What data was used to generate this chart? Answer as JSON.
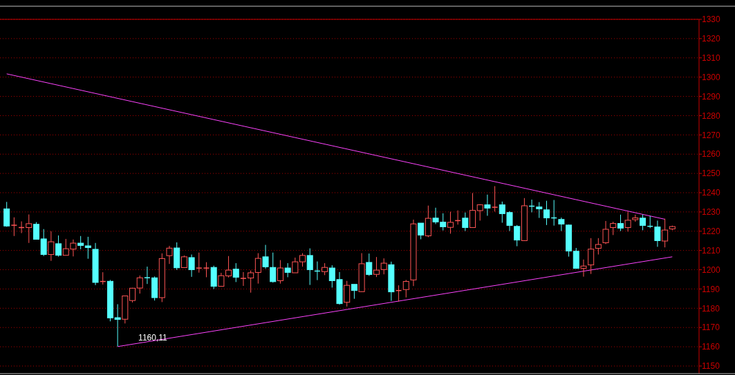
{
  "chart_data": {
    "type": "candlestick",
    "categories": [
      null,
      null,
      null,
      null,
      null,
      null,
      null,
      null,
      null,
      null,
      null,
      null,
      null,
      null,
      null,
      null,
      null,
      null,
      null,
      null,
      null,
      null,
      null,
      null,
      null,
      null,
      null,
      null,
      null,
      null,
      null,
      null,
      null,
      null,
      null,
      null,
      null,
      null,
      null,
      null,
      null,
      null,
      null,
      null,
      null,
      null,
      null,
      null,
      null,
      null,
      null,
      null,
      null,
      null,
      null,
      null,
      null,
      null,
      null,
      null,
      null,
      null,
      null,
      null,
      null,
      null,
      null,
      null,
      null,
      null,
      null,
      null,
      null,
      null,
      null,
      null,
      null,
      null,
      null,
      null,
      null,
      null,
      null,
      null,
      null,
      null,
      null,
      null,
      null,
      null,
      null
    ],
    "ohlc": [
      [
        1231.6,
        1235.2,
        1222.3,
        1222.7
      ],
      [
        1223.1,
        1227.2,
        1217.5,
        1223.1
      ],
      [
        1221.9,
        1225.1,
        1219.0,
        1221.9
      ],
      [
        1221.9,
        1228.7,
        1213.9,
        1223.9
      ],
      [
        1223.6,
        1224.7,
        1215.8,
        1215.8
      ],
      [
        1216.0,
        1221.1,
        1207.1,
        1207.9
      ],
      [
        1207.9,
        1220.0,
        1204.6,
        1214.5
      ],
      [
        1213.5,
        1217.8,
        1206.8,
        1207.5
      ],
      [
        1207.5,
        1216.0,
        1207.5,
        1210.9
      ],
      [
        1210.7,
        1215.7,
        1206.9,
        1213.8
      ],
      [
        1213.8,
        1217.5,
        1210.6,
        1212.6
      ],
      [
        1212.4,
        1217.1,
        1205.7,
        1211.5
      ],
      [
        1210.6,
        1213.9,
        1192.0,
        1193.4
      ],
      [
        1193.9,
        1198.7,
        1192.3,
        1193.9
      ],
      [
        1194.0,
        1194.7,
        1173.2,
        1175.0
      ],
      [
        1175.1,
        1182.1,
        1160.11,
        1174.2
      ],
      [
        1174.3,
        1186.4,
        1172.1,
        1186.4
      ],
      [
        1184.0,
        1190.6,
        1183.0,
        1190.4
      ],
      [
        1190.5,
        1197.0,
        1187.6,
        1195.8
      ],
      [
        1195.9,
        1201.6,
        1192.6,
        1195.8
      ],
      [
        1195.8,
        1196.5,
        1184.0,
        1185.5
      ],
      [
        1185.5,
        1208.5,
        1183.2,
        1205.8
      ],
      [
        1207.3,
        1212.4,
        1203.0,
        1211.2
      ],
      [
        1211.3,
        1214.2,
        1199.9,
        1201.0
      ],
      [
        1201.1,
        1207.4,
        1201.1,
        1206.7
      ],
      [
        1206.3,
        1207.9,
        1196.3,
        1200.0
      ],
      [
        1200.5,
        1208.9,
        1198.5,
        1201.2
      ],
      [
        1200.5,
        1203.9,
        1196.1,
        1201.2
      ],
      [
        1201.2,
        1202.1,
        1190.0,
        1191.4
      ],
      [
        1191.4,
        1198.4,
        1191.4,
        1196.9
      ],
      [
        1196.8,
        1207.1,
        1196.0,
        1199.8
      ],
      [
        1200.3,
        1203.4,
        1193.6,
        1196.1
      ],
      [
        1195.5,
        1198.8,
        1191.6,
        1195.5
      ],
      [
        1195.7,
        1199.6,
        1188.1,
        1198.4
      ],
      [
        1198.6,
        1208.6,
        1192.8,
        1205.9
      ],
      [
        1206.7,
        1212.9,
        1200.5,
        1201.5
      ],
      [
        1201.2,
        1208.9,
        1193.3,
        1193.8
      ],
      [
        1194.3,
        1205.0,
        1192.8,
        1200.9
      ],
      [
        1200.9,
        1203.4,
        1196.1,
        1198.6
      ],
      [
        1198.4,
        1206.3,
        1198.4,
        1204.1
      ],
      [
        1204.1,
        1208.6,
        1201.6,
        1207.4
      ],
      [
        1207.4,
        1211.1,
        1192.1,
        1200.0
      ],
      [
        1199.6,
        1204.3,
        1194.6,
        1199.0
      ],
      [
        1199.0,
        1203.4,
        1197.2,
        1201.2
      ],
      [
        1200.9,
        1202.3,
        1190.7,
        1194.3
      ],
      [
        1194.9,
        1198.8,
        1181.9,
        1182.4
      ],
      [
        1183.1,
        1194.2,
        1180.9,
        1191.9
      ],
      [
        1192.4,
        1192.4,
        1184.9,
        1189.2
      ],
      [
        1188.6,
        1208.6,
        1188.6,
        1203.1
      ],
      [
        1203.8,
        1208.4,
        1196.8,
        1197.5
      ],
      [
        1197.6,
        1206.6,
        1196.2,
        1199.8
      ],
      [
        1200.1,
        1205.9,
        1197.6,
        1203.4
      ],
      [
        1202.6,
        1204.2,
        1183.8,
        1188.5
      ],
      [
        1189.2,
        1191.9,
        1183.5,
        1189.2
      ],
      [
        1189.7,
        1194.7,
        1185.6,
        1193.9
      ],
      [
        1194.7,
        1226.0,
        1191.5,
        1223.8
      ],
      [
        1224.2,
        1224.2,
        1215.8,
        1218.0
      ],
      [
        1217.6,
        1233.3,
        1216.9,
        1226.7
      ],
      [
        1226.8,
        1232.2,
        1223.7,
        1224.8
      ],
      [
        1224.7,
        1229.3,
        1220.4,
        1222.3
      ],
      [
        1222.0,
        1230.1,
        1218.7,
        1224.6
      ],
      [
        1225.5,
        1230.8,
        1223.4,
        1225.5
      ],
      [
        1226.8,
        1229.7,
        1220.1,
        1221.9
      ],
      [
        1221.9,
        1239.8,
        1221.9,
        1230.8
      ],
      [
        1230.7,
        1234.0,
        1225.5,
        1233.7
      ],
      [
        1233.7,
        1239.0,
        1228.0,
        1232.0
      ],
      [
        1232.1,
        1243.4,
        1230.2,
        1232.8
      ],
      [
        1233.7,
        1235.4,
        1224.4,
        1229.1
      ],
      [
        1229.7,
        1230.4,
        1220.1,
        1223.0
      ],
      [
        1222.5,
        1223.2,
        1212.2,
        1215.4
      ],
      [
        1215.1,
        1237.2,
        1214.9,
        1233.2
      ],
      [
        1233.3,
        1236.4,
        1229.8,
        1232.7
      ],
      [
        1232.6,
        1235.1,
        1226.9,
        1231.6
      ],
      [
        1231.1,
        1235.8,
        1223.2,
        1226.9
      ],
      [
        1227.0,
        1236.2,
        1222.9,
        1226.8
      ],
      [
        1226.1,
        1227.1,
        1220.1,
        1223.7
      ],
      [
        1223.2,
        1223.5,
        1206.8,
        1209.7
      ],
      [
        1209.6,
        1211.3,
        1200.5,
        1200.7
      ],
      [
        1200.7,
        1205.3,
        1196.4,
        1201.9
      ],
      [
        1202.5,
        1216.4,
        1197.8,
        1210.7
      ],
      [
        1211.1,
        1216.4,
        1207.9,
        1213.1
      ],
      [
        1214.0,
        1225.3,
        1213.3,
        1221.0
      ],
      [
        1221.9,
        1224.9,
        1218.0,
        1224.0
      ],
      [
        1224.0,
        1228.6,
        1220.1,
        1221.6
      ],
      [
        1221.9,
        1230.1,
        1219.8,
        1225.7
      ],
      [
        1226.0,
        1228.6,
        1224.9,
        1226.9
      ],
      [
        1226.8,
        1228.6,
        1220.5,
        1223.0
      ],
      [
        1222.8,
        1227.9,
        1221.6,
        1222.3
      ],
      [
        1222.2,
        1225.5,
        1211.9,
        1215.1
      ],
      [
        1214.9,
        1226.5,
        1211.6,
        1220.6
      ],
      [
        1221.2,
        1222.9,
        1220.5,
        1222.4
      ]
    ],
    "series": [
      {
        "type": "line",
        "color": "#ff44ff",
        "values": [
          1301.7,
          null,
          null,
          null,
          null,
          null,
          null,
          null,
          null,
          null,
          null,
          null,
          null,
          null,
          null,
          null,
          null,
          null,
          null,
          null,
          null,
          null,
          null,
          null,
          null,
          null,
          null,
          null,
          null,
          null,
          null,
          null,
          null,
          null,
          null,
          null,
          null,
          null,
          null,
          null,
          null,
          null,
          null,
          null,
          null,
          null,
          null,
          null,
          null,
          null,
          null,
          null,
          null,
          null,
          null,
          null,
          null,
          null,
          null,
          null,
          null,
          null,
          null,
          null,
          null,
          null,
          null,
          null,
          null,
          null,
          null,
          null,
          null,
          null,
          null,
          null,
          null,
          null,
          null,
          null,
          null,
          null,
          null,
          null,
          null,
          null,
          null,
          null,
          null,
          1226.2,
          null
        ]
      },
      {
        "type": "line",
        "color": "#ff44ff",
        "values": [
          null,
          null,
          null,
          null,
          null,
          null,
          null,
          null,
          null,
          null,
          null,
          null,
          null,
          null,
          null,
          1160.1,
          null,
          null,
          null,
          null,
          null,
          null,
          null,
          null,
          null,
          null,
          null,
          null,
          null,
          null,
          null,
          null,
          null,
          null,
          null,
          null,
          null,
          null,
          null,
          null,
          null,
          null,
          null,
          null,
          null,
          null,
          null,
          null,
          null,
          null,
          null,
          null,
          null,
          null,
          null,
          null,
          null,
          null,
          null,
          null,
          null,
          null,
          null,
          null,
          null,
          null,
          null,
          null,
          null,
          null,
          null,
          null,
          null,
          null,
          null,
          null,
          null,
          null,
          null,
          null,
          null,
          null,
          null,
          null,
          null,
          null,
          null,
          null,
          null,
          null,
          1206.7
        ]
      }
    ],
    "annotations": [
      "1160,11"
    ],
    "ylim": [
      1150,
      1330
    ],
    "yticks": [
      1150,
      1160,
      1170,
      1180,
      1190,
      1200,
      1210,
      1220,
      1230,
      1240,
      1250,
      1260,
      1270,
      1280,
      1290,
      1300,
      1310,
      1320,
      1330
    ],
    "grid": "y",
    "tick_labels": "y"
  }
}
